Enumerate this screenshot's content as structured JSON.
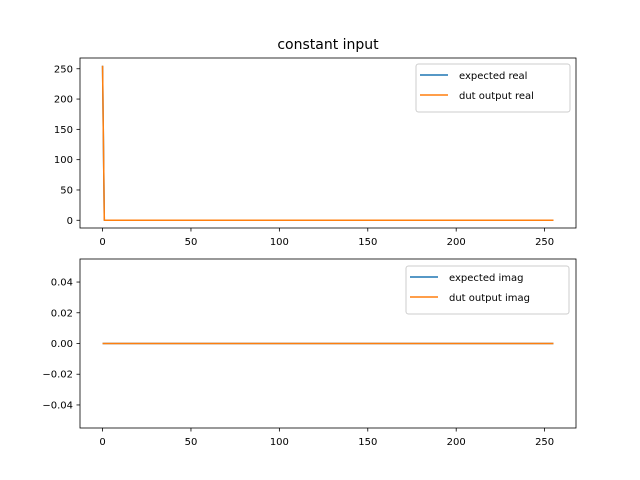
{
  "title": "constant input",
  "chart_data": [
    {
      "type": "line",
      "title": "constant input",
      "xlabel": "",
      "ylabel": "",
      "xlim": [
        -12.75,
        267.75
      ],
      "ylim": [
        -12.75,
        267.75
      ],
      "xticks": [
        0,
        50,
        100,
        150,
        200,
        250
      ],
      "yticks": [
        0,
        50,
        100,
        150,
        200,
        250
      ],
      "grid": false,
      "legend_position": "upper right",
      "series": [
        {
          "name": "expected real",
          "color": "#1f77b4",
          "x": [
            0,
            1,
            255
          ],
          "y": [
            255,
            0,
            0
          ]
        },
        {
          "name": "dut output real",
          "color": "#ff7f0e",
          "x": [
            0,
            1,
            255
          ],
          "y": [
            255,
            0,
            0
          ]
        }
      ]
    },
    {
      "type": "line",
      "title": "",
      "xlabel": "",
      "ylabel": "",
      "xlim": [
        -12.75,
        267.75
      ],
      "ylim": [
        -0.055,
        0.055
      ],
      "xticks": [
        0,
        50,
        100,
        150,
        200,
        250
      ],
      "yticks": [
        -0.04,
        -0.02,
        0.0,
        0.02,
        0.04
      ],
      "ytick_labels": [
        "−0.04",
        "−0.02",
        "0.00",
        "0.02",
        "0.04"
      ],
      "grid": false,
      "legend_position": "upper right",
      "series": [
        {
          "name": "expected imag",
          "color": "#1f77b4",
          "x": [
            0,
            255
          ],
          "y": [
            0,
            0
          ]
        },
        {
          "name": "dut output imag",
          "color": "#ff7f0e",
          "x": [
            0,
            255
          ],
          "y": [
            0,
            0
          ]
        }
      ]
    }
  ]
}
